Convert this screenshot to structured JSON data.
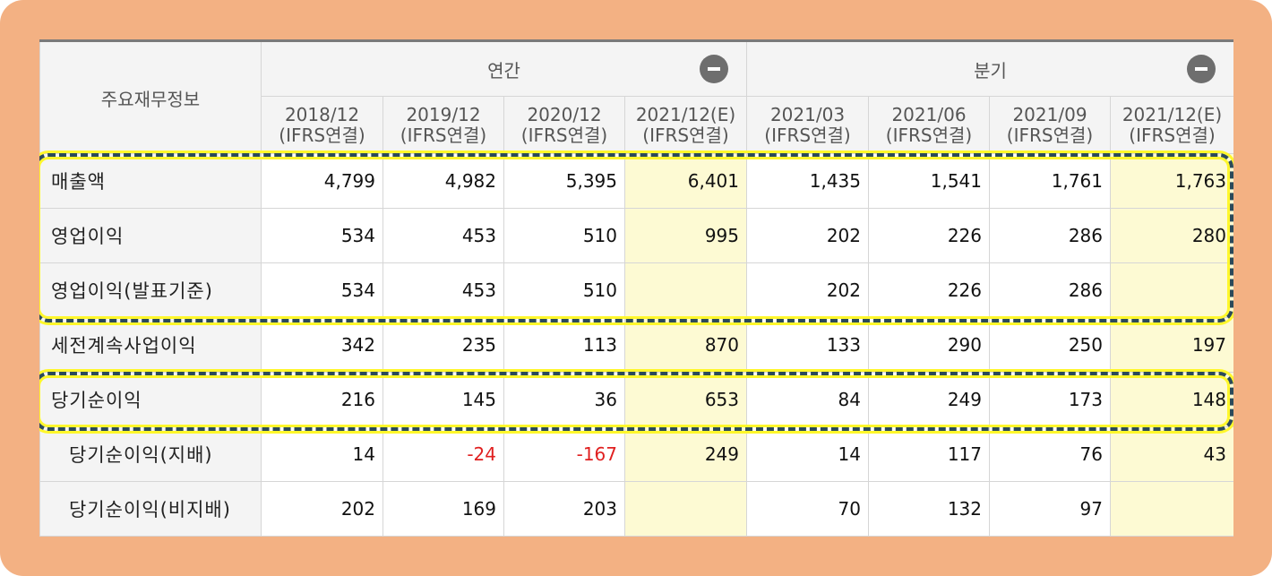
{
  "table": {
    "corner_label": "주요재무정보",
    "groups": {
      "annual": "연간",
      "quarterly": "분기"
    },
    "columns": [
      {
        "period": "2018/12",
        "basis": "(IFRS연결)",
        "estimate": false
      },
      {
        "period": "2019/12",
        "basis": "(IFRS연결)",
        "estimate": false
      },
      {
        "period": "2020/12",
        "basis": "(IFRS연결)",
        "estimate": false
      },
      {
        "period": "2021/12(E)",
        "basis": "(IFRS연결)",
        "estimate": true
      },
      {
        "period": "2021/03",
        "basis": "(IFRS연결)",
        "estimate": false
      },
      {
        "period": "2021/06",
        "basis": "(IFRS연결)",
        "estimate": false
      },
      {
        "period": "2021/09",
        "basis": "(IFRS연결)",
        "estimate": false
      },
      {
        "period": "2021/12(E)",
        "basis": "(IFRS연결)",
        "estimate": true
      }
    ],
    "rows": [
      {
        "label": "매출액",
        "values": [
          "4,799",
          "4,982",
          "5,395",
          "6,401",
          "1,435",
          "1,541",
          "1,761",
          "1,763"
        ],
        "highlighted": true
      },
      {
        "label": "영업이익",
        "values": [
          "534",
          "453",
          "510",
          "995",
          "202",
          "226",
          "286",
          "280"
        ],
        "highlighted": true
      },
      {
        "label": "영업이익(발표기준)",
        "values": [
          "534",
          "453",
          "510",
          "",
          "202",
          "226",
          "286",
          ""
        ],
        "highlighted": true
      },
      {
        "label": "세전계속사업이익",
        "values": [
          "342",
          "235",
          "113",
          "870",
          "133",
          "290",
          "250",
          "197"
        ],
        "highlighted": false
      },
      {
        "label": "당기순이익",
        "values": [
          "216",
          "145",
          "36",
          "653",
          "84",
          "249",
          "173",
          "148"
        ],
        "highlighted": true
      },
      {
        "label": "당기순이익(지배)",
        "values": [
          "14",
          "-24",
          "-167",
          "249",
          "14",
          "117",
          "76",
          "43"
        ],
        "highlighted": false
      },
      {
        "label": "당기순이익(비지배)",
        "values": [
          "202",
          "169",
          "203",
          "",
          "70",
          "132",
          "97",
          ""
        ],
        "highlighted": false
      }
    ]
  },
  "colors": {
    "frame": "#f3b183",
    "estimate_cell": "#fdfad3",
    "highlight_dash": "#2b4a5a",
    "highlight_glow": "#fff72b",
    "negative": "#e02020"
  }
}
